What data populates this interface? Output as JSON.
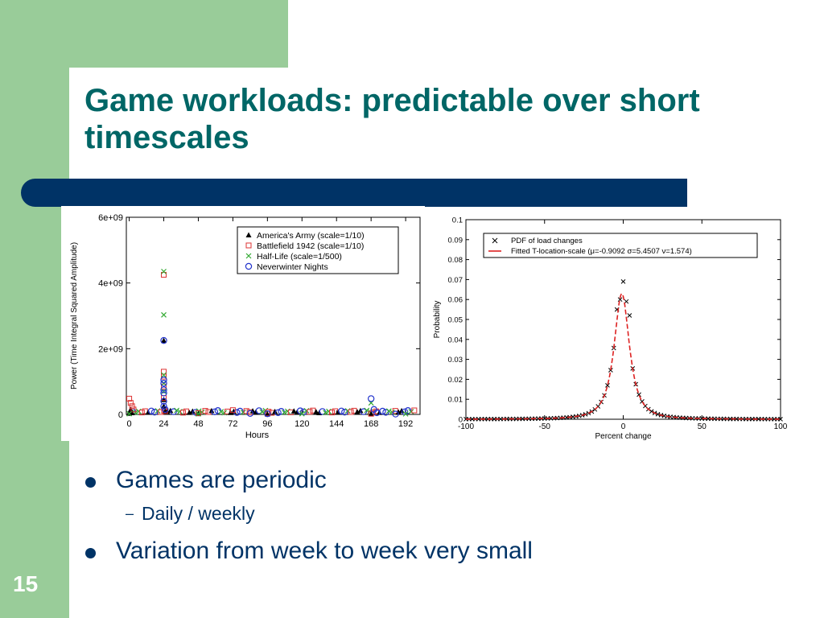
{
  "slide": {
    "title": "Game workloads: predictable over short timescales",
    "page_number": "15",
    "colors": {
      "side_panel": "#99cc99",
      "title_bar": "#003366",
      "title_text": "#006666",
      "body_text": "#003366"
    },
    "bullets": [
      {
        "level": 1,
        "text": "Games are periodic"
      },
      {
        "level": 2,
        "text": "Daily / weekly"
      },
      {
        "level": 1,
        "text": "Variation from week to week very small"
      }
    ]
  },
  "chart_data": [
    {
      "type": "scatter",
      "xlabel": "Hours",
      "ylabel": "Power (Time Integral Squared Amplitude)",
      "x_ticks": [
        0,
        24,
        48,
        72,
        96,
        120,
        144,
        168,
        192
      ],
      "y_ticks": [
        "0",
        "2e+09",
        "4e+09",
        "6e+09"
      ],
      "xlim": [
        -2,
        202
      ],
      "ylim": [
        0,
        6000000000
      ],
      "legend_position": "top-right",
      "grid": false,
      "series": [
        {
          "name": "America's Army (scale=1/10)",
          "marker": "triangle-filled",
          "color": "#000000",
          "points": [
            [
              0,
              30000000
            ],
            [
              1,
              150000000
            ],
            [
              2,
              50000000
            ],
            [
              24,
              2250000000
            ],
            [
              24,
              450000000
            ],
            [
              24,
              250000000
            ],
            [
              25,
              100000000
            ],
            [
              48,
              20000000
            ],
            [
              96,
              10000000
            ],
            [
              168,
              20000000
            ]
          ]
        },
        {
          "name": "Battlefield 1942 (scale=1/10)",
          "marker": "square-open",
          "color": "#dd3333",
          "points": [
            [
              0,
              480000000
            ],
            [
              1,
              350000000
            ],
            [
              2,
              250000000
            ],
            [
              3,
              150000000
            ],
            [
              24,
              4250000000
            ],
            [
              24,
              1300000000
            ],
            [
              24,
              1150000000
            ],
            [
              24,
              850000000
            ],
            [
              24,
              500000000
            ],
            [
              25,
              100000000
            ],
            [
              48,
              40000000
            ],
            [
              72,
              130000000
            ],
            [
              96,
              30000000
            ],
            [
              168,
              20000000
            ]
          ]
        },
        {
          "name": "Half-Life (scale=1/500)",
          "marker": "cross",
          "color": "#33aa33",
          "points": [
            [
              0,
              20000000
            ],
            [
              24,
              4350000000
            ],
            [
              24,
              3030000000
            ],
            [
              24,
              1200000000
            ],
            [
              24,
              950000000
            ],
            [
              24,
              700000000
            ],
            [
              48,
              20000000
            ],
            [
              120,
              20000000
            ],
            [
              168,
              350000000
            ],
            [
              192,
              15000000
            ]
          ]
        },
        {
          "name": "Neverwinter Nights",
          "marker": "circle-open",
          "color": "#2233cc",
          "points": [
            [
              24,
              2250000000
            ],
            [
              24,
              1050000000
            ],
            [
              24,
              950000000
            ],
            [
              24,
              750000000
            ],
            [
              24,
              650000000
            ],
            [
              24,
              400000000
            ],
            [
              24,
              250000000
            ],
            [
              25,
              150000000
            ],
            [
              84,
              30000000
            ],
            [
              96,
              20000000
            ],
            [
              168,
              480000000
            ],
            [
              170,
              150000000
            ],
            [
              172,
              50000000
            ],
            [
              185,
              10000000
            ]
          ]
        }
      ]
    },
    {
      "type": "line",
      "xlabel": "Percent change",
      "ylabel": "Probability",
      "x_ticks": [
        -100,
        -50,
        0,
        50,
        100
      ],
      "y_ticks": [
        "0",
        "0.01",
        "0.02",
        "0.03",
        "0.04",
        "0.05",
        "0.06",
        "0.07",
        "0.08",
        "0.09",
        "0.1"
      ],
      "xlim": [
        -100,
        100
      ],
      "ylim": [
        0,
        0.1
      ],
      "legend_position": "top-left",
      "grid": false,
      "series": [
        {
          "name": "PDF of load changes",
          "marker": "x",
          "color": "#000000",
          "x_step": 2,
          "x_start": -100,
          "x_end": 100
        },
        {
          "name": "Fitted T-location-scale",
          "style": "dashed-line",
          "color": "#dd2222",
          "params": {
            "mu": -0.9092,
            "sigma": 5.4507,
            "nu": 1.574
          }
        }
      ],
      "pdf_peak_points": [
        [
          -2,
          0.06
        ],
        [
          0,
          0.069
        ],
        [
          2,
          0.059
        ],
        [
          -4,
          0.055
        ],
        [
          4,
          0.052
        ]
      ],
      "legend_labels": [
        "PDF of load changes",
        "Fitted T-location-scale (μ=-0.9092  σ=5.4507  ν=1.574)"
      ]
    }
  ]
}
